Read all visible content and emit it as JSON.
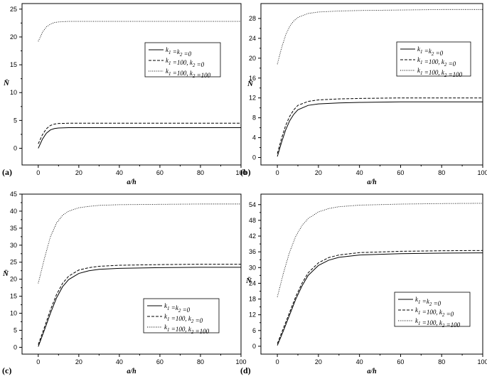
{
  "figure": {
    "background": "#ffffff",
    "ink": "#000000"
  },
  "chart_data": [
    {
      "type": "line",
      "panel_label": "(a)",
      "xlabel": "a/h",
      "ylabel": "N̄",
      "xlim": [
        -8,
        100
      ],
      "ylim": [
        -3,
        26
      ],
      "xticks": [
        "0",
        "20",
        "40",
        "60",
        "80",
        "100"
      ],
      "yticks": [
        "0",
        "5",
        "10",
        "15",
        "20",
        "25"
      ],
      "legend_position": "right",
      "series": [
        {
          "name": "k1=k2=0",
          "legend_main": "k",
          "legend_sub1": "1",
          "legend_mid": " =k",
          "legend_sub2": "2",
          "legend_end": " =0",
          "dash": "solid",
          "x": [
            0,
            2,
            4,
            6,
            8,
            10,
            15,
            20,
            40,
            60,
            80,
            100
          ],
          "y": [
            0,
            1.6,
            2.7,
            3.3,
            3.55,
            3.65,
            3.7,
            3.7,
            3.7,
            3.7,
            3.7,
            3.7
          ]
        },
        {
          "name": "k1=100, k2=0",
          "legend_main": "k",
          "legend_sub1": "1",
          "legend_mid": " =100, k",
          "legend_sub2": "2",
          "legend_end": " =0",
          "dash": "dashed",
          "x": [
            0,
            2,
            4,
            6,
            8,
            10,
            15,
            20,
            40,
            60,
            80,
            100
          ],
          "y": [
            0.8,
            2.4,
            3.5,
            4.1,
            4.35,
            4.45,
            4.5,
            4.5,
            4.5,
            4.5,
            4.5,
            4.5
          ]
        },
        {
          "name": "k1=100, k2=100",
          "legend_main": "k",
          "legend_sub1": "1",
          "legend_mid": " =100, k",
          "legend_sub2": "2",
          "legend_end": " =100",
          "dash": "dotted",
          "x": [
            0,
            2,
            4,
            6,
            8,
            10,
            15,
            20,
            40,
            60,
            80,
            100
          ],
          "y": [
            19.2,
            20.8,
            21.8,
            22.3,
            22.6,
            22.7,
            22.8,
            22.8,
            22.8,
            22.8,
            22.8,
            22.8
          ]
        }
      ]
    },
    {
      "type": "line",
      "panel_label": "(b)",
      "xlabel": "a/h",
      "ylabel": "N̄",
      "xlim": [
        -8,
        100
      ],
      "ylim": [
        -1.5,
        31
      ],
      "xticks": [
        "0",
        "20",
        "40",
        "60",
        "80",
        "100"
      ],
      "yticks": [
        "0",
        "4",
        "8",
        "12",
        "16",
        "20",
        "24",
        "28"
      ],
      "legend_position": "right",
      "series": [
        {
          "name": "k1=k2=0",
          "legend_main": "k",
          "legend_sub1": "1",
          "legend_mid": " =k",
          "legend_sub2": "2",
          "legend_end": " =0",
          "dash": "solid",
          "x": [
            0,
            2,
            4,
            6,
            8,
            10,
            15,
            20,
            30,
            40,
            60,
            80,
            100
          ],
          "y": [
            0.2,
            3,
            5.5,
            7.4,
            8.7,
            9.6,
            10.5,
            10.8,
            11,
            11.1,
            11.2,
            11.2,
            11.2
          ]
        },
        {
          "name": "k1=100, k2=0",
          "legend_main": "k",
          "legend_sub1": "1",
          "legend_mid": " =100, k",
          "legend_sub2": "2",
          "legend_end": " =0",
          "dash": "dashed",
          "x": [
            0,
            2,
            4,
            6,
            8,
            10,
            15,
            20,
            30,
            40,
            60,
            80,
            100
          ],
          "y": [
            0.8,
            3.8,
            6.4,
            8.3,
            9.6,
            10.5,
            11.3,
            11.6,
            11.8,
            11.9,
            12,
            12,
            12
          ]
        },
        {
          "name": "k1=100, k2=100",
          "legend_main": "k",
          "legend_sub1": "1",
          "legend_mid": " =100, k",
          "legend_sub2": "2",
          "legend_end": " =100",
          "dash": "dotted",
          "x": [
            0,
            2,
            4,
            6,
            8,
            10,
            15,
            20,
            30,
            40,
            60,
            80,
            100
          ],
          "y": [
            18.8,
            22,
            24.6,
            26.4,
            27.5,
            28.2,
            29,
            29.3,
            29.5,
            29.6,
            29.7,
            29.8,
            29.8
          ]
        }
      ]
    },
    {
      "type": "line",
      "panel_label": "(c)",
      "xlabel": "a/h",
      "ylabel": "N̄",
      "xlim": [
        -8,
        100
      ],
      "ylim": [
        -2,
        45
      ],
      "xticks": [
        "0",
        "20",
        "40",
        "60",
        "80",
        "100"
      ],
      "yticks": [
        "0",
        "5",
        "10",
        "15",
        "20",
        "25",
        "30",
        "35",
        "40",
        "45"
      ],
      "legend_position": "bottom-right",
      "series": [
        {
          "name": "k1=k2=0",
          "legend_main": "k",
          "legend_sub1": "1",
          "legend_mid": " =k",
          "legend_sub2": "2",
          "legend_end": " =0",
          "dash": "solid",
          "x": [
            0,
            3,
            6,
            9,
            12,
            15,
            20,
            25,
            30,
            40,
            60,
            80,
            100
          ],
          "y": [
            0.2,
            5,
            10,
            14.5,
            17.8,
            19.9,
            21.7,
            22.5,
            22.9,
            23.2,
            23.4,
            23.5,
            23.5
          ]
        },
        {
          "name": "k1=100, k2=0",
          "legend_main": "k",
          "legend_sub1": "1",
          "legend_mid": " =100, k",
          "legend_sub2": "2",
          "legend_end": " =0",
          "dash": "dashed",
          "x": [
            0,
            3,
            6,
            9,
            12,
            15,
            20,
            25,
            30,
            40,
            60,
            80,
            100
          ],
          "y": [
            0.8,
            5.8,
            11,
            15.5,
            18.8,
            20.9,
            22.7,
            23.4,
            23.8,
            24.1,
            24.3,
            24.4,
            24.4
          ]
        },
        {
          "name": "k1=100, k2=100",
          "legend_main": "k",
          "legend_sub1": "1",
          "legend_mid": " =100, k",
          "legend_sub2": "2",
          "legend_end": " =100",
          "dash": "dotted",
          "x": [
            0,
            3,
            6,
            9,
            12,
            15,
            20,
            25,
            30,
            40,
            60,
            80,
            100
          ],
          "y": [
            18.8,
            26,
            32.5,
            36.5,
            38.8,
            40,
            41,
            41.4,
            41.7,
            41.9,
            42,
            42.1,
            42.1
          ]
        }
      ]
    },
    {
      "type": "line",
      "panel_label": "(d)",
      "xlabel": "a/h",
      "ylabel": "N̄",
      "xlim": [
        -8,
        100
      ],
      "ylim": [
        -3,
        58
      ],
      "xticks": [
        "0",
        "20",
        "40",
        "60",
        "80",
        "100"
      ],
      "yticks": [
        "0",
        "6",
        "12",
        "18",
        "24",
        "30",
        "36",
        "42",
        "48",
        "54"
      ],
      "legend_position": "bottom-right",
      "series": [
        {
          "name": "k1=k2=0",
          "legend_main": "k",
          "legend_sub1": "1",
          "legend_mid": " =k",
          "legend_sub2": "2",
          "legend_end": " =0",
          "dash": "solid",
          "x": [
            0,
            3,
            6,
            9,
            12,
            15,
            20,
            25,
            30,
            40,
            60,
            80,
            100
          ],
          "y": [
            0.3,
            6,
            12,
            18,
            23,
            27,
            30.8,
            32.8,
            33.9,
            34.8,
            35.3,
            35.5,
            35.6
          ]
        },
        {
          "name": "k1=100, k2=0",
          "legend_main": "k",
          "legend_sub1": "1",
          "legend_mid": " =100, k",
          "legend_sub2": "2",
          "legend_end": " =0",
          "dash": "dashed",
          "x": [
            0,
            3,
            6,
            9,
            12,
            15,
            20,
            25,
            30,
            40,
            60,
            80,
            100
          ],
          "y": [
            1,
            7,
            13,
            19,
            24,
            28,
            31.8,
            33.8,
            34.8,
            35.7,
            36.2,
            36.4,
            36.5
          ]
        },
        {
          "name": "k1=100, k2=100",
          "legend_main": "k",
          "legend_sub1": "1",
          "legend_mid": " =100, k",
          "legend_sub2": "2",
          "legend_end": " =100",
          "dash": "dotted",
          "x": [
            0,
            3,
            6,
            9,
            12,
            15,
            20,
            25,
            30,
            40,
            60,
            80,
            100
          ],
          "y": [
            18.8,
            28,
            36,
            42,
            46,
            48.7,
            51.2,
            52.5,
            53.2,
            53.8,
            54.2,
            54.4,
            54.5
          ]
        }
      ]
    }
  ]
}
